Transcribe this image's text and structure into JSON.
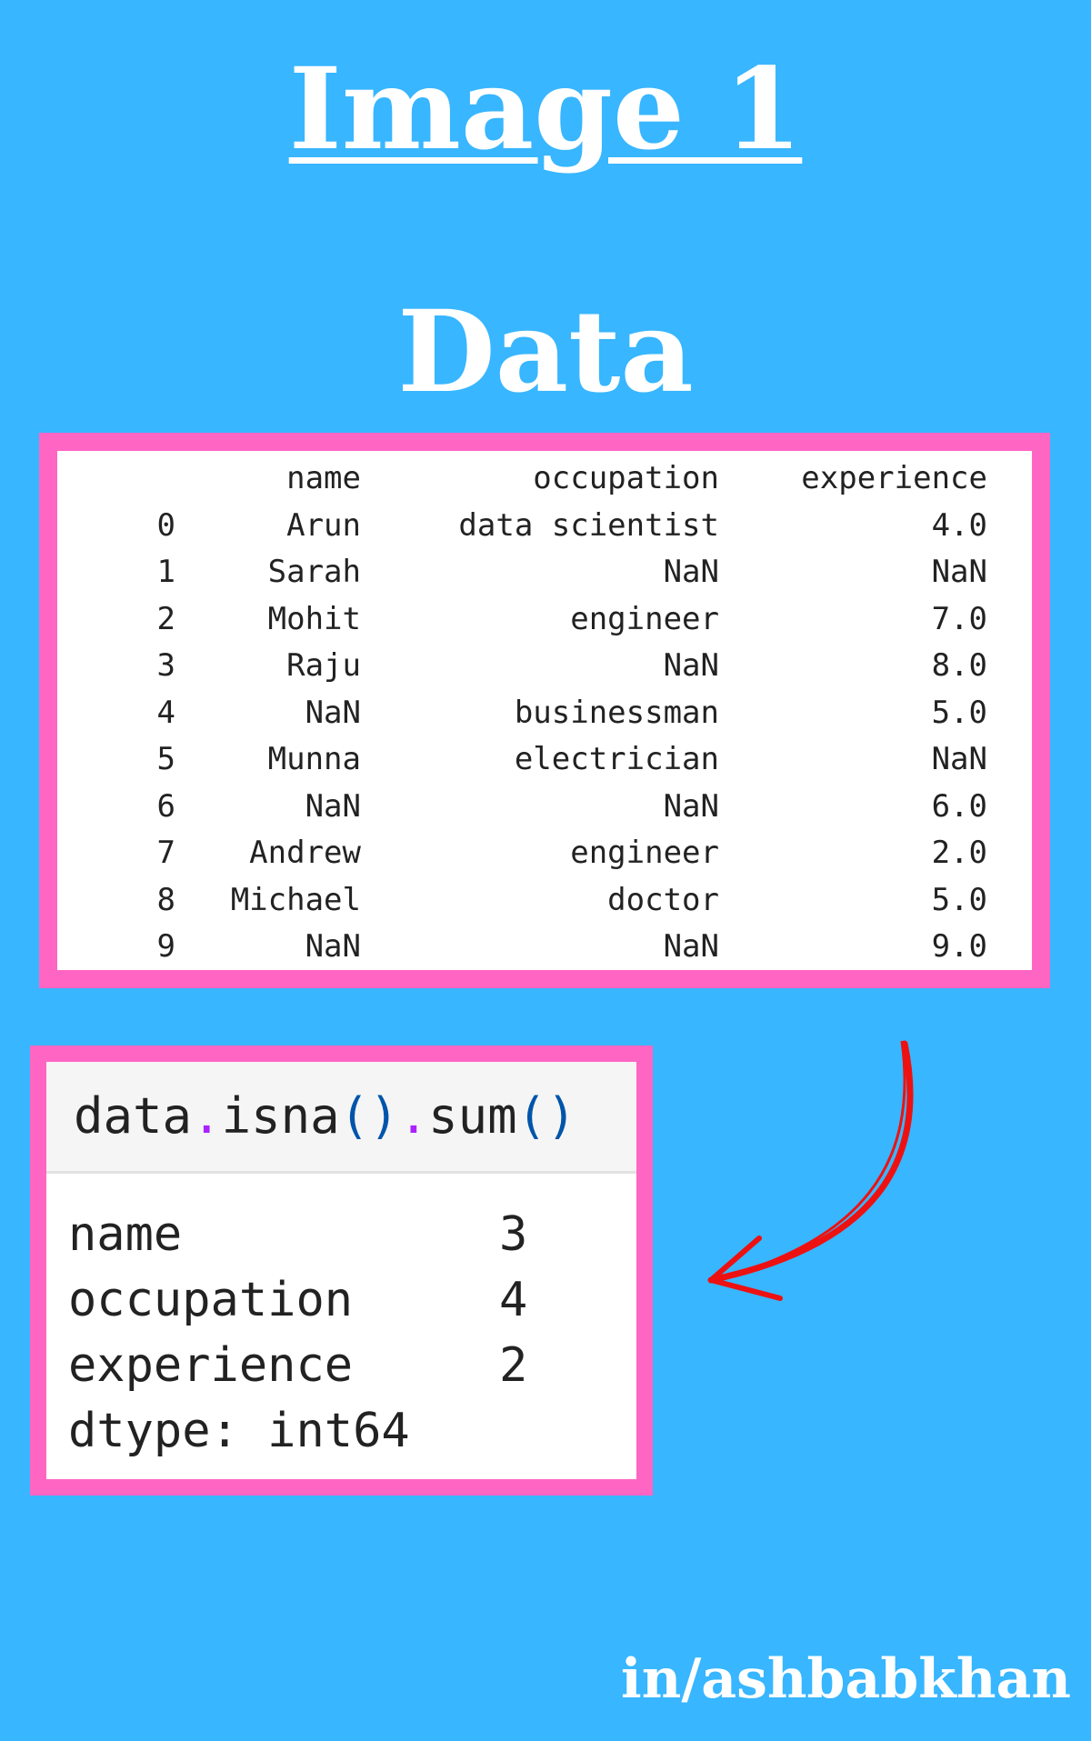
{
  "title": "Image 1",
  "subtitle": "Data",
  "colors": {
    "background": "#38b6ff",
    "frame": "#ff66c4",
    "arrow": "#ee1111"
  },
  "table": {
    "columns": [
      "",
      "name",
      "occupation",
      "experience"
    ],
    "rows": [
      [
        "0",
        "Arun",
        "data scientist",
        "4.0"
      ],
      [
        "1",
        "Sarah",
        "NaN",
        "NaN"
      ],
      [
        "2",
        "Mohit",
        "engineer",
        "7.0"
      ],
      [
        "3",
        "Raju",
        "NaN",
        "8.0"
      ],
      [
        "4",
        "NaN",
        "businessman",
        "5.0"
      ],
      [
        "5",
        "Munna",
        "electrician",
        "NaN"
      ],
      [
        "6",
        "NaN",
        "NaN",
        "6.0"
      ],
      [
        "7",
        "Andrew",
        "engineer",
        "2.0"
      ],
      [
        "8",
        "Michael",
        "doctor",
        "5.0"
      ],
      [
        "9",
        "NaN",
        "NaN",
        "9.0"
      ]
    ]
  },
  "code": {
    "parts": [
      "data",
      ".",
      "isna",
      "()",
      ".",
      "sum",
      "()"
    ],
    "output": [
      {
        "label": "name",
        "value": "3"
      },
      {
        "label": "occupation",
        "value": "4"
      },
      {
        "label": "experience",
        "value": "2"
      }
    ],
    "dtype": "dtype: int64"
  },
  "arrow_icon": "curved-arrow-left",
  "footer": "in/ashbabkhan"
}
